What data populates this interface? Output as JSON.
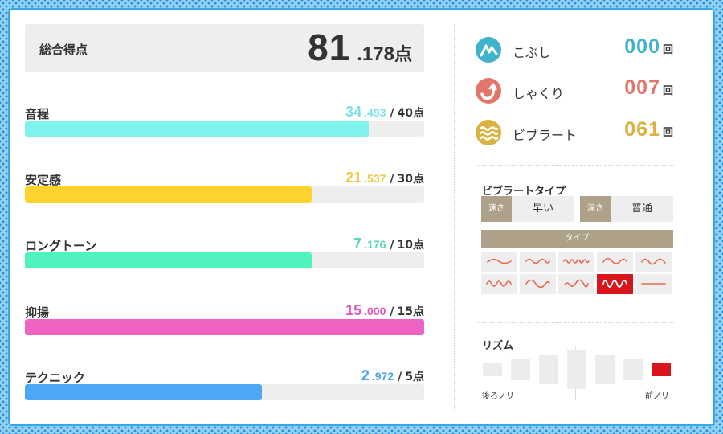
{
  "total": {
    "label": "総合得点",
    "integer": "81",
    "decimal": ".178",
    "unit": "点"
  },
  "categories": [
    {
      "name": "音程",
      "integer": "34",
      "decimal": ".493",
      "separator": "/",
      "max": "40点",
      "color": "#7ef2ee",
      "fill": 0.862
    },
    {
      "name": "安定感",
      "integer": "21",
      "decimal": ".537",
      "separator": "/",
      "max": "30点",
      "color": "#ffd22e",
      "fill": 0.718
    },
    {
      "name": "ロングトーン",
      "integer": "7",
      "decimal": ".176",
      "separator": "/",
      "max": "10点",
      "color": "#50f2c0",
      "fill": 0.718
    },
    {
      "name": "抑揚",
      "integer": "15",
      "decimal": ".000",
      "separator": "/",
      "max": "15点",
      "color": "#ef63c3",
      "fill": 1.0
    },
    {
      "name": "テクニック",
      "integer": "2",
      "decimal": ".972",
      "separator": "/",
      "max": "5点",
      "color": "#4ea6f7",
      "fill": 0.594
    }
  ],
  "score_colors": [
    "#7ee0e6",
    "#f0c842",
    "#56d8b8",
    "#e055b8",
    "#4da3e8"
  ],
  "techniques": [
    {
      "label": "こぶし",
      "count": "000",
      "unit": "回",
      "icon": "kobushi-icon",
      "color": "#3fb3c9"
    },
    {
      "label": "しゃくり",
      "count": "007",
      "unit": "回",
      "icon": "shakuri-icon",
      "color": "#e2766a"
    },
    {
      "label": "ビブラート",
      "count": "061",
      "unit": "回",
      "icon": "vibrato-icon",
      "color": "#d9b23f"
    }
  ],
  "vibrato_type": {
    "title": "ビブラートタイプ",
    "speed_label": "速さ",
    "speed_value": "早い",
    "depth_label": "深さ",
    "depth_value": "普通",
    "type_label": "タイプ",
    "selected_index": 7,
    "wave_color": "#e9694d"
  },
  "rhythm": {
    "title": "リズム",
    "left_label": "後ろノリ",
    "right_label": "前ノリ",
    "active_index": 6,
    "active_color": "#d7151b"
  }
}
